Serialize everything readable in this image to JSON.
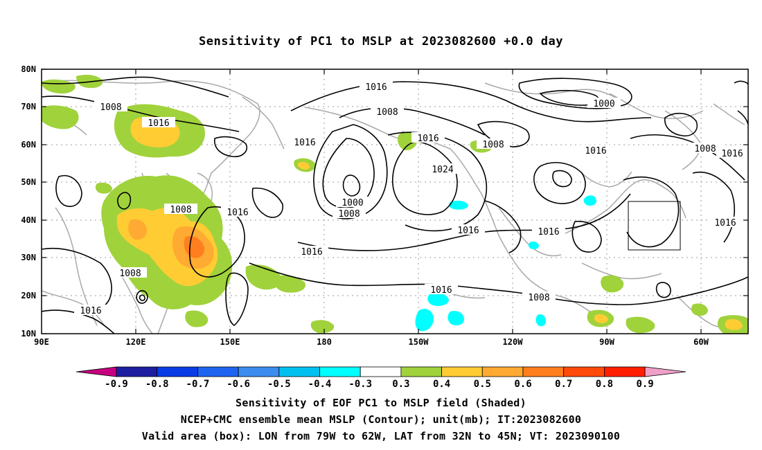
{
  "title": "Sensitivity of PC1 to MSLP at 2023082600 +0.0 day",
  "map": {
    "lat_labels": [
      "80N",
      "70N",
      "60N",
      "50N",
      "40N",
      "30N",
      "20N",
      "10N"
    ],
    "lon_labels": [
      "90E",
      "120E",
      "150E",
      "180",
      "150W",
      "120W",
      "90W",
      "60W"
    ],
    "contour_labels": [
      {
        "text": "1016"
      },
      {
        "text": "1008"
      },
      {
        "text": "1016"
      },
      {
        "text": "1016"
      },
      {
        "text": "1008"
      },
      {
        "text": "1016"
      },
      {
        "text": "1000"
      },
      {
        "text": "1008"
      },
      {
        "text": "1016"
      },
      {
        "text": "1024"
      },
      {
        "text": "1016"
      },
      {
        "text": "1008"
      },
      {
        "text": "1000"
      },
      {
        "text": "1016"
      },
      {
        "text": "1008"
      },
      {
        "text": "1016"
      },
      {
        "text": "1016"
      },
      {
        "text": "1016"
      },
      {
        "text": "1008"
      },
      {
        "text": "1008"
      },
      {
        "text": "1016"
      },
      {
        "text": "1016"
      },
      {
        "text": "1008"
      },
      {
        "text": "1016"
      }
    ],
    "valid_box": {
      "lon_from": "79W",
      "lon_to": "62W",
      "lat_from": "32N",
      "lat_to": "45N"
    }
  },
  "colorbar": {
    "labels": [
      "-0.9",
      "-0.8",
      "-0.7",
      "-0.6",
      "-0.5",
      "-0.4",
      "-0.3",
      "0.3",
      "0.4",
      "0.5",
      "0.6",
      "0.7",
      "0.8",
      "0.9"
    ],
    "colors": [
      "#1e1ea0",
      "#0a3ce6",
      "#1e64f0",
      "#3c8cf0",
      "#00c0f0",
      "#00ffff",
      "#ffffff",
      "#a0d23c",
      "#ffcc33",
      "#ffaa33",
      "#ff7f1e",
      "#ff4a0a",
      "#ff1e00"
    ],
    "low_end_color": "#c8007f",
    "high_end_color": "#f0a0c8"
  },
  "captions": [
    "Sensitivity of EOF PC1 to MSLP field (Shaded)",
    "NCEP+CMC ensemble mean MSLP (Contour); unit(mb); IT:2023082600",
    "Valid area (box): LON from 79W to 62W, LAT from 32N to 45N; VT: 2023090100"
  ]
}
